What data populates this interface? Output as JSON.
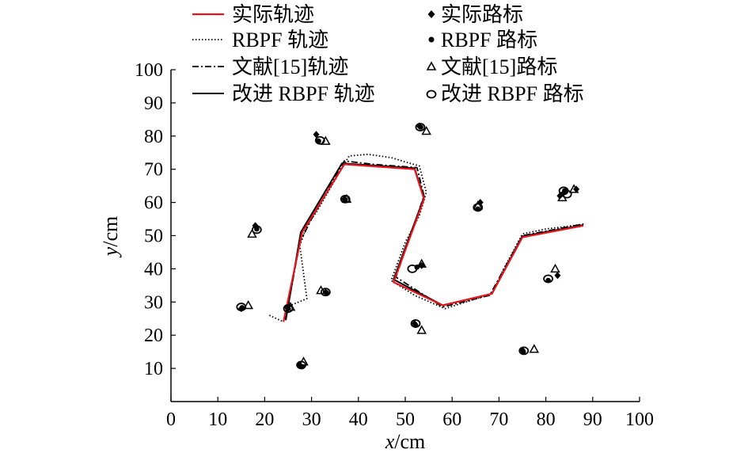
{
  "chart_data": {
    "type": "line",
    "xlabel_var": "x",
    "xlabel_unit": "/cm",
    "ylabel_var": "y",
    "ylabel_unit": "/cm",
    "xlim": [
      0,
      100
    ],
    "ylim": [
      0,
      100
    ],
    "xticks": [
      0,
      10,
      20,
      30,
      40,
      50,
      60,
      70,
      80,
      90,
      100
    ],
    "yticks": [
      10,
      20,
      30,
      40,
      50,
      60,
      70,
      80,
      90,
      100
    ],
    "grid": false,
    "legend_position": "top",
    "series": [
      {
        "name": "实际轨迹",
        "color": "#e8141c",
        "style": "solid",
        "points": [
          [
            24,
            24
          ],
          [
            28,
            51
          ],
          [
            37,
            71.5
          ],
          [
            52,
            70
          ],
          [
            54,
            61
          ],
          [
            47.5,
            36
          ],
          [
            58,
            29
          ],
          [
            68.5,
            32.5
          ],
          [
            75,
            49.5
          ],
          [
            88,
            53
          ]
        ]
      },
      {
        "name": "RBPF 轨迹",
        "color": "#000000",
        "style": "dotted",
        "points": [
          [
            21,
            26
          ],
          [
            24,
            24
          ],
          [
            25.5,
            29
          ],
          [
            29,
            31
          ],
          [
            27.5,
            47
          ],
          [
            29,
            53
          ],
          [
            31,
            57
          ],
          [
            38,
            74
          ],
          [
            42,
            74.5
          ],
          [
            47,
            73.5
          ],
          [
            50.5,
            72
          ],
          [
            53,
            71
          ],
          [
            54.5,
            63
          ],
          [
            53,
            56
          ],
          [
            50,
            48
          ],
          [
            47,
            36.5
          ],
          [
            52,
            32
          ],
          [
            58.5,
            28
          ],
          [
            68.5,
            32.5
          ],
          [
            71,
            40
          ],
          [
            75,
            50.5
          ],
          [
            80,
            52
          ],
          [
            88.5,
            53.5
          ]
        ]
      },
      {
        "name": "文献[15]轨迹",
        "color": "#000000",
        "style": "dashdot",
        "points": [
          [
            24.5,
            25
          ],
          [
            27.5,
            48
          ],
          [
            30,
            55
          ],
          [
            37,
            72.5
          ],
          [
            43,
            71.5
          ],
          [
            52.5,
            70.5
          ],
          [
            54,
            62
          ],
          [
            48,
            37.5
          ],
          [
            58,
            28.5
          ],
          [
            68,
            32
          ],
          [
            75,
            50
          ],
          [
            88,
            53.5
          ]
        ]
      },
      {
        "name": "改进 RBPF 轨迹",
        "color": "#000000",
        "style": "solid",
        "points": [
          [
            24.5,
            24.5
          ],
          [
            27.7,
            51
          ],
          [
            36.5,
            71.8
          ],
          [
            52,
            70.3
          ],
          [
            54,
            61.5
          ],
          [
            47.5,
            36.8
          ],
          [
            58,
            29
          ],
          [
            68.5,
            32.5
          ],
          [
            75,
            49.8
          ],
          [
            88,
            53.2
          ]
        ]
      }
    ],
    "landmarks": [
      {
        "name": "实际路标",
        "marker": "diamond",
        "points": [
          [
            15,
            28
          ],
          [
            18,
            53
          ],
          [
            25,
            28
          ],
          [
            27.5,
            11
          ],
          [
            31,
            80.5
          ],
          [
            33,
            33
          ],
          [
            37,
            61
          ],
          [
            52,
            23.5
          ],
          [
            53,
            83
          ],
          [
            53.5,
            41
          ],
          [
            66,
            60
          ],
          [
            75,
            15.5
          ],
          [
            83,
            62
          ],
          [
            82.5,
            38
          ],
          [
            86.5,
            64
          ]
        ]
      },
      {
        "name": "RBPF 路标",
        "marker": "dot",
        "points": [
          [
            15.2,
            28.3
          ],
          [
            18.3,
            52
          ],
          [
            24.7,
            28.5
          ],
          [
            28,
            10.5
          ],
          [
            31.5,
            78.5
          ],
          [
            33.2,
            32.8
          ],
          [
            37.2,
            60.8
          ],
          [
            52.2,
            23
          ],
          [
            53.3,
            82.7
          ],
          [
            52.5,
            40.5
          ],
          [
            65.5,
            58
          ],
          [
            75.2,
            15
          ],
          [
            83.5,
            62.5
          ],
          [
            80.5,
            36.5
          ],
          [
            84,
            63.5
          ]
        ]
      },
      {
        "name": "文献[15]路标",
        "marker": "triangle",
        "points": [
          [
            16.5,
            29
          ],
          [
            17.3,
            50.5
          ],
          [
            25.5,
            28.5
          ],
          [
            28.3,
            12
          ],
          [
            33,
            78.5
          ],
          [
            32,
            33.5
          ],
          [
            37.5,
            61
          ],
          [
            53.5,
            21.5
          ],
          [
            54.5,
            81.5
          ],
          [
            53.5,
            41.5
          ],
          [
            65.5,
            59
          ],
          [
            77.5,
            15.8
          ],
          [
            83.5,
            61.5
          ],
          [
            82,
            40
          ],
          [
            86,
            64
          ]
        ]
      },
      {
        "name": "改进 RBPF 路标",
        "marker": "circle",
        "points": [
          [
            15,
            28.5
          ],
          [
            18.3,
            51.8
          ],
          [
            25,
            28
          ],
          [
            27.8,
            11
          ],
          [
            31.8,
            78.7
          ],
          [
            33,
            33
          ],
          [
            37.2,
            61
          ],
          [
            52.2,
            23.5
          ],
          [
            53.2,
            82.7
          ],
          [
            51.5,
            40
          ],
          [
            65.5,
            58.5
          ],
          [
            75.3,
            15.3
          ],
          [
            83.8,
            63.5
          ],
          [
            80.5,
            37
          ],
          [
            84.5,
            62.5
          ]
        ]
      }
    ]
  }
}
